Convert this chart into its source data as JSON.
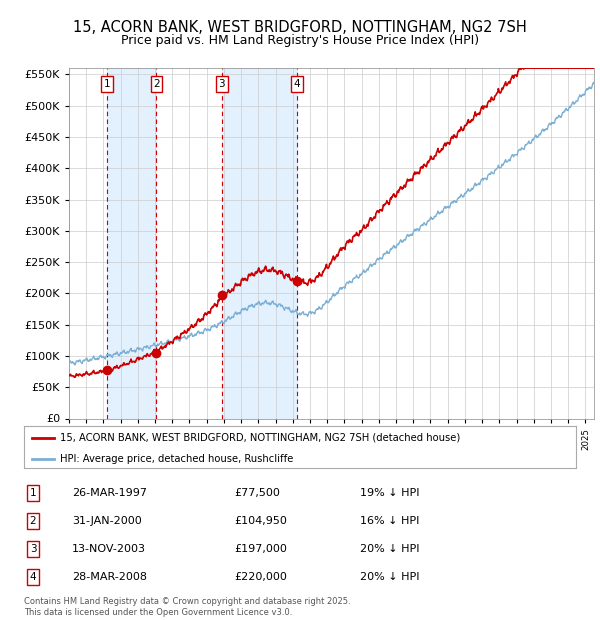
{
  "title": "15, ACORN BANK, WEST BRIDGFORD, NOTTINGHAM, NG2 7SH",
  "subtitle": "Price paid vs. HM Land Registry's House Price Index (HPI)",
  "title_fontsize": 10.5,
  "subtitle_fontsize": 9,
  "background_color": "#ffffff",
  "plot_bg_color": "#ffffff",
  "grid_color": "#cccccc",
  "ylim": [
    0,
    560000
  ],
  "yticks": [
    0,
    50000,
    100000,
    150000,
    200000,
    250000,
    300000,
    350000,
    400000,
    450000,
    500000,
    550000
  ],
  "purchase_years": [
    1997.23,
    2000.08,
    2003.87,
    2008.24
  ],
  "purchase_prices": [
    77500,
    104950,
    197000,
    220000
  ],
  "purchase_labels": [
    "1",
    "2",
    "3",
    "4"
  ],
  "red_line_color": "#cc0000",
  "blue_line_color": "#7bafd4",
  "dashed_line_color": "#cc0000",
  "shade_color": "#ddeeff",
  "marker_color": "#cc0000",
  "legend_label_red": "15, ACORN BANK, WEST BRIDGFORD, NOTTINGHAM, NG2 7SH (detached house)",
  "legend_label_blue": "HPI: Average price, detached house, Rushcliffe",
  "footer": "Contains HM Land Registry data © Crown copyright and database right 2025.\nThis data is licensed under the Open Government Licence v3.0.",
  "table_rows": [
    [
      "1",
      "26-MAR-1997",
      "£77,500",
      "19% ↓ HPI"
    ],
    [
      "2",
      "31-JAN-2000",
      "£104,950",
      "16% ↓ HPI"
    ],
    [
      "3",
      "13-NOV-2003",
      "£197,000",
      "20% ↓ HPI"
    ],
    [
      "4",
      "28-MAR-2008",
      "£220,000",
      "20% ↓ HPI"
    ]
  ],
  "xmin": 1995,
  "xmax": 2025.5
}
